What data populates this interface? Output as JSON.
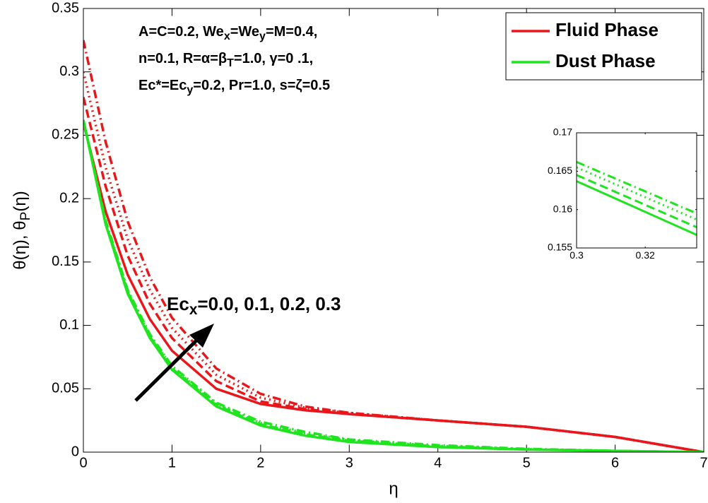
{
  "chart_data": [
    {
      "type": "line",
      "xlabel": "η",
      "ylabel": [
        {
          "text": "θ(η),   θ"
        },
        {
          "sub": "P"
        },
        {
          "text": "(η)"
        }
      ],
      "x": [
        0,
        0.25,
        0.5,
        0.75,
        1,
        1.5,
        2,
        2.5,
        3,
        4,
        5,
        6,
        7
      ],
      "xlim": [
        0,
        7
      ],
      "ylim": [
        0,
        0.35
      ],
      "xticks": [
        0,
        1,
        2,
        3,
        4,
        5,
        6,
        7
      ],
      "yticks": [
        0,
        0.05,
        0.1,
        0.15,
        0.2,
        0.25,
        0.3,
        0.35
      ],
      "legend": [
        {
          "name": "Fluid Phase",
          "color": "#e8171b"
        },
        {
          "name": "Dust Phase",
          "color": "#1fe41f"
        }
      ],
      "legend_position": "upper right",
      "series": [
        {
          "color": "#e8171b",
          "dash": "solid",
          "values": [
            0.26,
            0.19,
            0.14,
            0.105,
            0.08,
            0.05,
            0.038,
            0.033,
            0.03,
            0.025,
            0.02,
            0.012,
            0
          ]
        },
        {
          "color": "#e8171b",
          "dash": "dashed",
          "values": [
            0.28,
            0.21,
            0.155,
            0.117,
            0.09,
            0.056,
            0.04,
            0.034,
            0.03,
            0.025,
            0.02,
            0.012,
            0
          ]
        },
        {
          "color": "#e8171b",
          "dash": "dotted",
          "values": [
            0.3,
            0.225,
            0.168,
            0.128,
            0.098,
            0.061,
            0.043,
            0.035,
            0.031,
            0.025,
            0.02,
            0.012,
            0
          ]
        },
        {
          "color": "#e8171b",
          "dash": "dashdot",
          "values": [
            0.325,
            0.245,
            0.182,
            0.138,
            0.106,
            0.066,
            0.046,
            0.036,
            0.031,
            0.025,
            0.02,
            0.012,
            0
          ]
        },
        {
          "color": "#1fe41f",
          "dash": "solid",
          "values": [
            0.262,
            0.18,
            0.125,
            0.09,
            0.065,
            0.036,
            0.021,
            0.013,
            0.008,
            0.004,
            0.002,
            0.001,
            0
          ]
        },
        {
          "color": "#1fe41f",
          "dash": "dashed",
          "values": [
            0.262,
            0.181,
            0.126,
            0.091,
            0.066,
            0.037,
            0.022,
            0.014,
            0.009,
            0.0045,
            0.0022,
            0.001,
            0
          ]
        },
        {
          "color": "#1fe41f",
          "dash": "dotted",
          "values": [
            0.262,
            0.182,
            0.127,
            0.092,
            0.067,
            0.038,
            0.023,
            0.015,
            0.0095,
            0.005,
            0.0024,
            0.001,
            0
          ]
        },
        {
          "color": "#1fe41f",
          "dash": "dashdot",
          "values": [
            0.262,
            0.183,
            0.128,
            0.093,
            0.068,
            0.039,
            0.024,
            0.016,
            0.01,
            0.0055,
            0.0026,
            0.001,
            0
          ]
        }
      ],
      "annotations": [
        [
          {
            "text": "A=C=0.2, We"
          },
          {
            "sub": "x"
          },
          {
            "text": "=We"
          },
          {
            "sub": "y"
          },
          {
            "text": "=M=0.4,"
          }
        ],
        [
          {
            "text": "n=0.1, R=α=β"
          },
          {
            "sub": "T"
          },
          {
            "text": "=1.0, γ=0 .1,"
          }
        ],
        [
          {
            "text": "Ec*=Ec"
          },
          {
            "sub": "y"
          },
          {
            "text": "=0.2, Pr=1.0, s=ζ=0.5"
          }
        ]
      ],
      "arrow_label": [
        {
          "text": "Ec"
        },
        {
          "sub": "x"
        },
        {
          "text": "=0.0, 0.1, 0.2, 0.3"
        }
      ]
    },
    {
      "type": "line",
      "x": [
        0.3,
        0.335
      ],
      "xlim": [
        0.3,
        0.335
      ],
      "ylim": [
        0.155,
        0.17
      ],
      "xticks": [
        0.3,
        0.32
      ],
      "yticks": [
        0.155,
        0.16,
        0.165,
        0.17
      ],
      "series": [
        {
          "color": "#1fe41f",
          "dash": "solid",
          "values": [
            0.1637,
            0.1567
          ]
        },
        {
          "color": "#1fe41f",
          "dash": "dashed",
          "values": [
            0.1645,
            0.1577
          ]
        },
        {
          "color": "#1fe41f",
          "dash": "dotted",
          "values": [
            0.1655,
            0.1587
          ]
        },
        {
          "color": "#1fe41f",
          "dash": "dashdot",
          "values": [
            0.1662,
            0.1595
          ]
        }
      ]
    }
  ]
}
